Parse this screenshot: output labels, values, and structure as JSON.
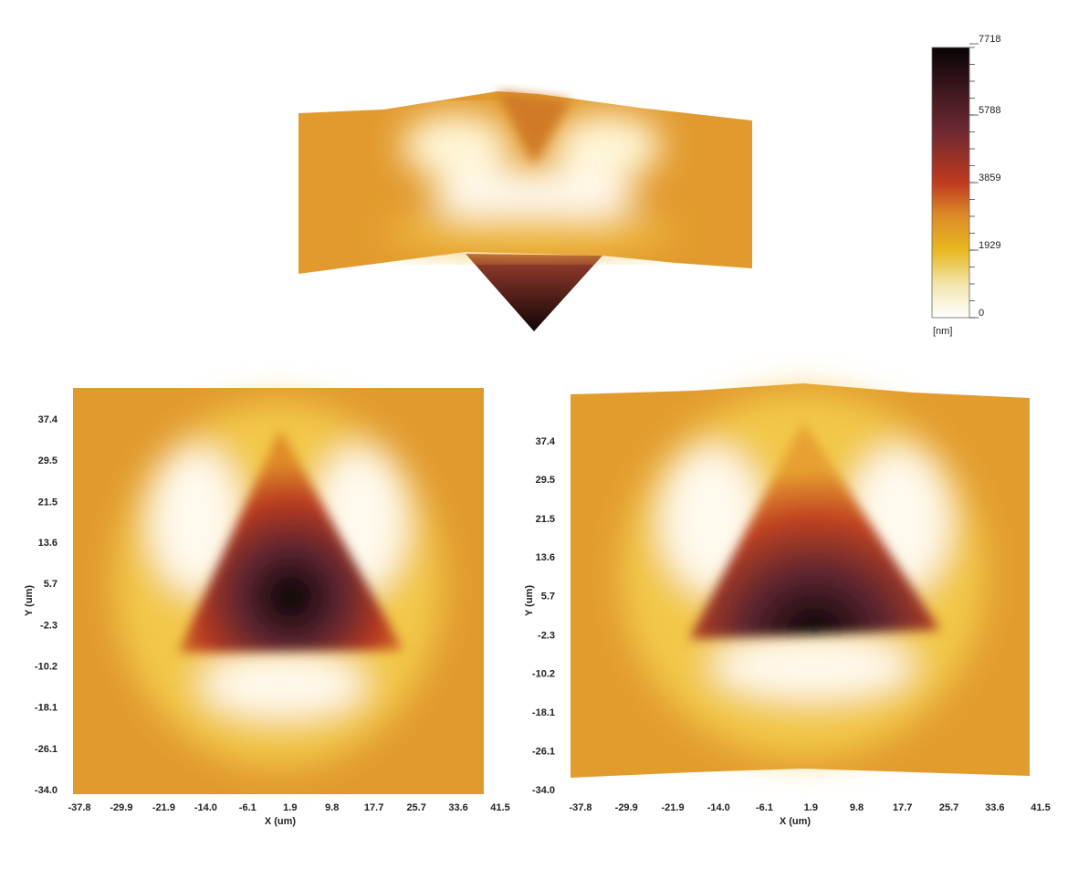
{
  "colorbar": {
    "ticks": [
      0,
      1929,
      3859,
      5788,
      7718
    ],
    "unit": "[nm]"
  },
  "panels": [
    {
      "xticks": [
        -37.8,
        -29.9,
        -21.9,
        {
          "value": -14,
          "label": "-14.0"
        },
        -6.1,
        1.9,
        9.8,
        17.7,
        25.7,
        33.6,
        41.5
      ],
      "yticks": [
        37.4,
        29.5,
        21.5,
        13.6,
        5.7,
        -2.3,
        -10.2,
        -18.1,
        -26.1,
        {
          "value": -34,
          "label": "-34.0"
        }
      ],
      "xlabel": "X (um)",
      "ylabel": "Y (um)"
    },
    {
      "xticks": [
        -37.8,
        -29.9,
        -21.9,
        {
          "value": -14,
          "label": "-14.0"
        },
        -6.1,
        1.9,
        9.8,
        17.7,
        25.7,
        33.6,
        41.5
      ],
      "yticks": [
        37.4,
        29.5,
        21.5,
        13.6,
        5.7,
        -2.3,
        -10.2,
        -18.1,
        -26.1,
        {
          "value": -34,
          "label": "-34.0"
        }
      ],
      "xlabel": "X (um)",
      "ylabel": "Y (um)"
    }
  ]
}
